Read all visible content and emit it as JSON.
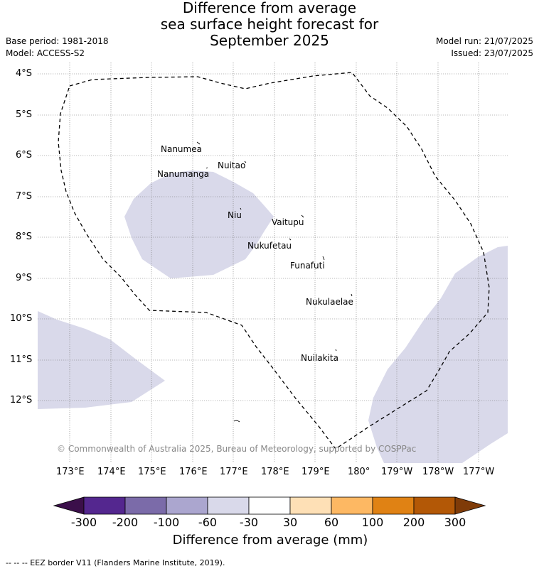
{
  "title": {
    "line1": "Difference from average",
    "line2": "sea surface height forecast for",
    "line3": "September 2025"
  },
  "meta": {
    "base_period": "Base period: 1981-2018",
    "model": "Model: ACCESS-S2",
    "model_run": "Model run: 21/07/2025",
    "issued": "Issued: 23/07/2025"
  },
  "latitude_labels": [
    "4°S",
    "5°S",
    "6°S",
    "7°S",
    "8°S",
    "9°S",
    "10°S",
    "11°S",
    "12°S"
  ],
  "longitude_labels": [
    "173°E",
    "174°E",
    "175°E",
    "176°E",
    "177°E",
    "178°E",
    "179°E",
    "180°",
    "179°W",
    "178°W",
    "177°W"
  ],
  "places": {
    "nanumea": "Nanumea",
    "nuitao": "Nuitao",
    "nanumanga": "Nanumanga",
    "niu": "Niu",
    "vaitupu": "Vaitupu",
    "nukufetau": "Nukufetau",
    "funafuti": "Funafuti",
    "nukulaelae": "Nukulaelae",
    "nuilakita": "Nuilakita"
  },
  "copyright": "© Commonwealth of Australia 2025, Bureau of Meteorology, supported by COSPPac",
  "colorbar": {
    "label": "Difference from average (mm)",
    "ticks": [
      "-300",
      "-200",
      "-100",
      "-60",
      "-30",
      "30",
      "60",
      "100",
      "200",
      "300"
    ],
    "colors": {
      "below_min": "#3b0f4a",
      "bin_-300_-200": "#54278f",
      "bin_-200_-100": "#7b6ba9",
      "bin_-100_-60": "#aba6cf",
      "bin_-60_-30": "#d9d9ea",
      "bin_-30_30": "#ffffff",
      "bin_30_60": "#fee0b6",
      "bin_60_100": "#fdb863",
      "bin_100_200": "#e08214",
      "bin_200_300": "#b35806",
      "above_max": "#7f3b08"
    }
  },
  "footnote": "-- -- -- EEZ border V11 (Flanders Marine Institute, 2019)."
}
